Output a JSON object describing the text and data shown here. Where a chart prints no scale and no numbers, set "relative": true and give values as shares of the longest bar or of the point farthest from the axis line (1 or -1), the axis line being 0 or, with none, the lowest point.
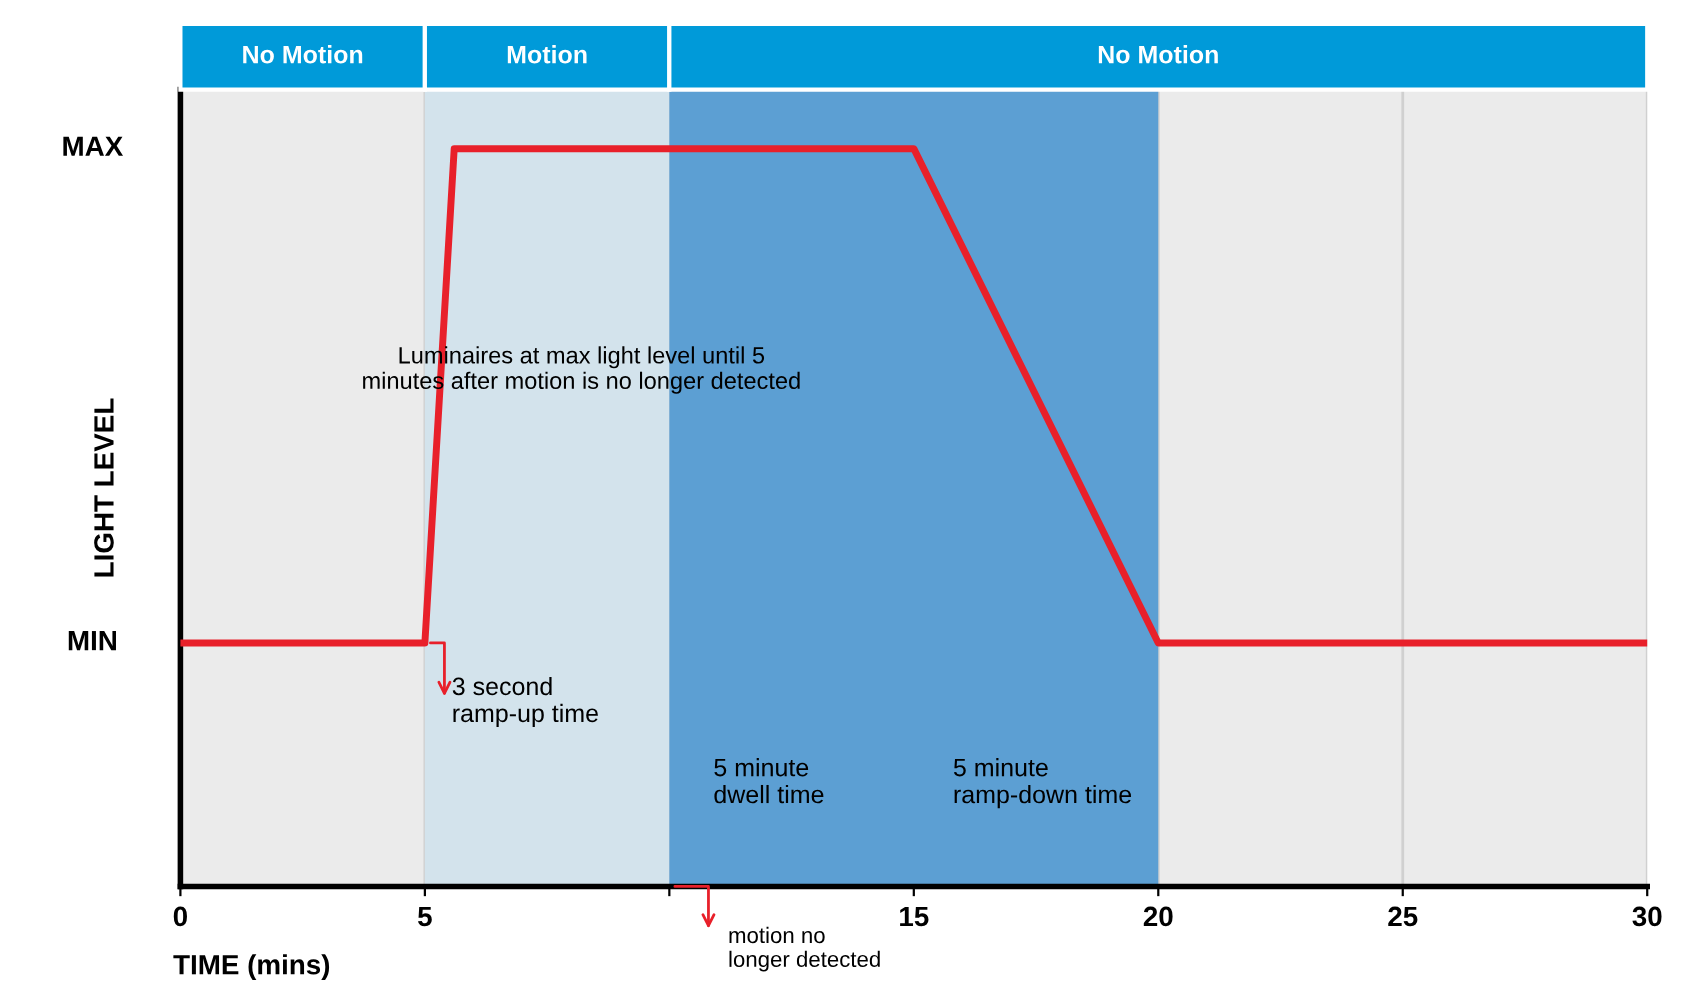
{
  "chart_data": {
    "type": "line",
    "relative": true,
    "xlabel": "TIME (mins)",
    "ylabel": "LIGHT LEVEL",
    "x": [
      0,
      5,
      5.6,
      15,
      20,
      30
    ],
    "series": [
      {
        "color": "#e8202a",
        "values": [
          0.33,
          0.33,
          1,
          1,
          0.33,
          0.33
        ]
      }
    ],
    "xlim": [
      0,
      30
    ],
    "xticks": [
      0,
      5,
      {
        "value": 10,
        "label": null
      },
      15,
      20,
      25,
      30
    ],
    "grid": "x",
    "marker": "none",
    "line_style": "solid",
    "bands": [
      {
        "axis": "x",
        "from": 5,
        "to": 10,
        "color": "#d3e3ec"
      },
      {
        "axis": "x",
        "from": 10,
        "to": 20,
        "color": "#5c9fd3"
      }
    ],
    "annotations": [
      "No Motion",
      "Motion",
      "No Motion",
      "MAX",
      "MIN",
      "Luminaires at max light level until 5 minutes after motion is no longer detected",
      {
        "text": "3 second ramp-up time",
        "x": 5,
        "y": 0.33
      },
      "5 minute dwell time",
      "5 minute ramp-down time",
      {
        "text": "motion no longer detected",
        "x": 10,
        "y": 0
      }
    ]
  }
}
